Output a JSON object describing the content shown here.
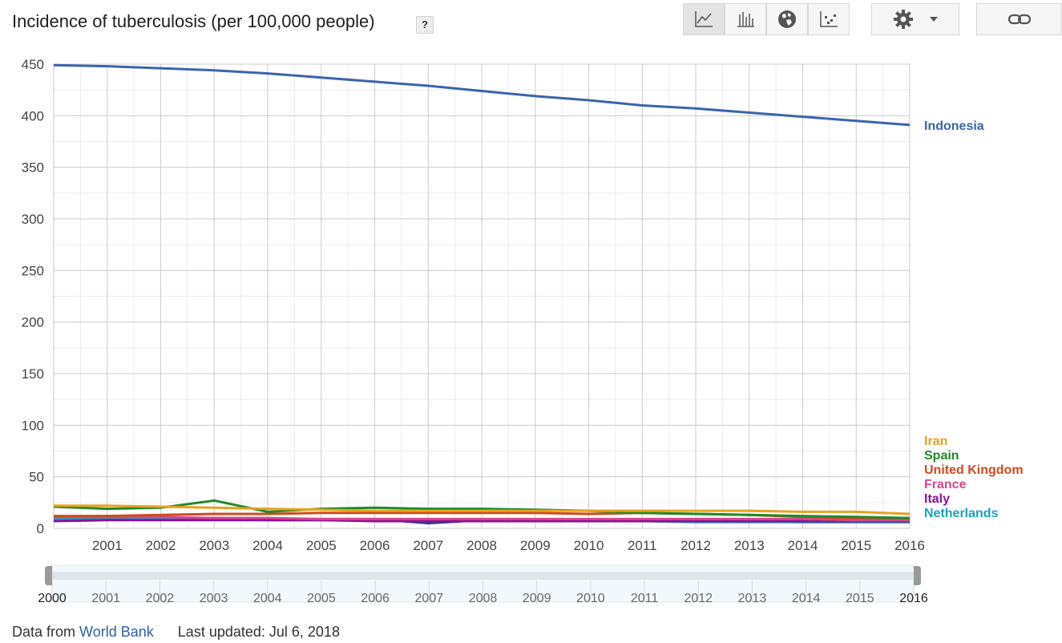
{
  "header": {
    "title": "Incidence of tuberculosis (per 100,000 people)",
    "help_label": "?",
    "views": [
      {
        "name": "line-chart-icon",
        "active": true
      },
      {
        "name": "bar-chart-icon",
        "active": false
      },
      {
        "name": "map-icon",
        "active": false
      },
      {
        "name": "scatter-icon",
        "active": false
      }
    ],
    "settings_icon": "gear-icon",
    "settings_dropdown_icon": "caret-down-icon",
    "link_icon": "link-icon"
  },
  "footer": {
    "source_prefix": "Data from",
    "source_link": "World Bank",
    "updated": "Last updated: Jul 6, 2018"
  },
  "range_slider": {
    "labels": [
      "2000",
      "2001",
      "2002",
      "2003",
      "2004",
      "2005",
      "2006",
      "2007",
      "2008",
      "2009",
      "2010",
      "2011",
      "2012",
      "2013",
      "2014",
      "2015",
      "2016"
    ],
    "start": "2000",
    "end": "2016"
  },
  "chart_data": {
    "type": "line",
    "title": "",
    "xlabel": "",
    "ylabel": "",
    "ylim": [
      0,
      450
    ],
    "yticks": [
      0,
      50,
      100,
      150,
      200,
      250,
      300,
      350,
      400,
      450
    ],
    "x": [
      2000,
      2001,
      2002,
      2003,
      2004,
      2005,
      2006,
      2007,
      2008,
      2009,
      2010,
      2011,
      2012,
      2013,
      2014,
      2015,
      2016
    ],
    "xtick_labels": [
      "2001",
      "2002",
      "2003",
      "2004",
      "2005",
      "2006",
      "2007",
      "2008",
      "2009",
      "2010",
      "2011",
      "2012",
      "2013",
      "2014",
      "2015",
      "2016"
    ],
    "grid": true,
    "legend": "right",
    "series": [
      {
        "name": "Indonesia",
        "color": "#3b64ad",
        "values": [
          449,
          448,
          446,
          444,
          441,
          437,
          433,
          429,
          424,
          419,
          415,
          410,
          407,
          403,
          399,
          395,
          391
        ]
      },
      {
        "name": "Iran",
        "color": "#e8a21f",
        "values": [
          22,
          22,
          21,
          20,
          19,
          18,
          17,
          17,
          17,
          17,
          17,
          17,
          17,
          17,
          16,
          16,
          14
        ]
      },
      {
        "name": "Spain",
        "color": "#1f8a2a",
        "values": [
          21,
          19,
          20,
          27,
          16,
          19,
          20,
          19,
          19,
          18,
          17,
          15,
          14,
          13,
          12,
          11,
          10
        ]
      },
      {
        "name": "United Kingdom",
        "color": "#d04a1e",
        "values": [
          12,
          12,
          13,
          14,
          14,
          15,
          15,
          15,
          15,
          15,
          14,
          15,
          14,
          13,
          11,
          10,
          10
        ]
      },
      {
        "name": "France",
        "color": "#d8468d",
        "values": [
          11,
          11,
          11,
          10,
          10,
          9,
          9,
          9,
          9,
          9,
          9,
          9,
          9,
          9,
          9,
          8,
          8
        ]
      },
      {
        "name": "Italy",
        "color": "#8b0f9a",
        "values": [
          7,
          8,
          8,
          8,
          8,
          8,
          7,
          7,
          7,
          7,
          7,
          7,
          7,
          7,
          7,
          7,
          7
        ]
      },
      {
        "name": "Netherlands",
        "color": "#1aa2bb",
        "values": [
          9,
          9,
          9,
          9,
          8,
          8,
          8,
          8,
          8,
          7,
          7,
          7,
          6,
          6,
          6,
          6,
          6
        ]
      },
      {
        "name": "",
        "color": "#2a3f95",
        "values": [
          9,
          9,
          10,
          10,
          9,
          9,
          9,
          5,
          8,
          8,
          8,
          8,
          7,
          7,
          6,
          6,
          6
        ]
      }
    ]
  }
}
